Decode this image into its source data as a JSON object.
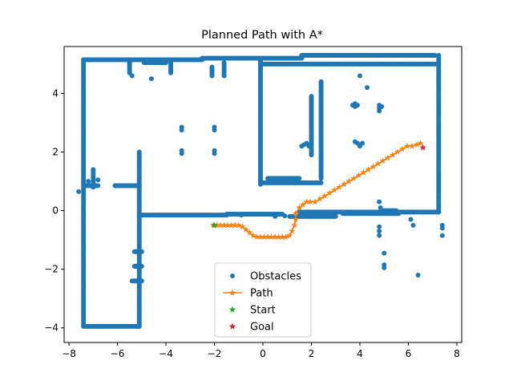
{
  "chart_data": {
    "type": "scatter",
    "title": "Planned Path with A*",
    "xlabel": "",
    "ylabel": "",
    "xlim": [
      -8.2,
      8.2
    ],
    "ylim": [
      -4.5,
      5.6
    ],
    "xticks": [
      -8,
      -6,
      -4,
      -2,
      0,
      2,
      4,
      6,
      8
    ],
    "yticks": [
      -4,
      -2,
      0,
      2,
      4
    ],
    "grid": false,
    "legend_position": "lower-center",
    "colors": {
      "obstacles": "#1f77b4",
      "path": "#ff7f0e",
      "start": "#2ca02c",
      "goal": "#d62728"
    },
    "obstacle_segments": [
      [
        [
          -7.4,
          5.15
        ],
        [
          -7.4,
          -3.95
        ]
      ],
      [
        [
          -7.4,
          -3.95
        ],
        [
          -5.1,
          -3.95
        ]
      ],
      [
        [
          -7.4,
          5.15
        ],
        [
          -2.5,
          5.15
        ]
      ],
      [
        [
          -2.5,
          5.2
        ],
        [
          1.6,
          5.2
        ]
      ],
      [
        [
          1.6,
          5.3
        ],
        [
          7.1,
          5.3
        ]
      ],
      [
        [
          -5.1,
          2.0
        ],
        [
          -5.1,
          -3.95
        ]
      ],
      [
        [
          -5.5,
          0.85
        ],
        [
          -5.1,
          0.85
        ]
      ],
      [
        [
          -6.1,
          0.85
        ],
        [
          -5.5,
          0.85
        ]
      ],
      [
        [
          -7.4,
          0.85
        ],
        [
          -6.8,
          0.85
        ]
      ],
      [
        [
          -5.0,
          -0.15
        ],
        [
          -1.5,
          -0.15
        ]
      ],
      [
        [
          -1.5,
          -0.12
        ],
        [
          0.8,
          -0.12
        ]
      ],
      [
        [
          -0.1,
          5.15
        ],
        [
          -0.1,
          0.9
        ]
      ],
      [
        [
          -0.1,
          5.0
        ],
        [
          7.1,
          5.0
        ]
      ],
      [
        [
          -0.1,
          0.95
        ],
        [
          2.4,
          0.95
        ]
      ],
      [
        [
          0.2,
          1.1
        ],
        [
          1.5,
          1.1
        ]
      ],
      [
        [
          2.4,
          4.4
        ],
        [
          2.4,
          1.1
        ]
      ],
      [
        [
          2.0,
          3.9
        ],
        [
          2.0,
          1.9
        ]
      ],
      [
        [
          7.25,
          5.3
        ],
        [
          7.25,
          -0.05
        ]
      ],
      [
        [
          1.5,
          -0.05
        ],
        [
          7.25,
          -0.05
        ]
      ],
      [
        [
          3.3,
          -0.1
        ],
        [
          5.6,
          -0.1
        ]
      ],
      [
        [
          1.1,
          -0.2
        ],
        [
          3.0,
          -0.2
        ]
      ],
      [
        [
          -1.6,
          5.05
        ],
        [
          -1.6,
          4.6
        ]
      ],
      [
        [
          -2.1,
          4.9
        ],
        [
          -2.1,
          4.6
        ]
      ],
      [
        [
          -5.5,
          5.1
        ],
        [
          -5.5,
          4.7
        ]
      ],
      [
        [
          -3.8,
          5.1
        ],
        [
          -3.8,
          4.7
        ]
      ],
      [
        [
          -5.3,
          -1.4
        ],
        [
          -5.0,
          -1.4
        ]
      ],
      [
        [
          -5.4,
          -2.4
        ],
        [
          -5.0,
          -2.4
        ]
      ],
      [
        [
          -5.3,
          -1.9
        ],
        [
          -5.0,
          -1.9
        ]
      ],
      [
        [
          -7.0,
          1.4
        ],
        [
          -7.0,
          0.8
        ]
      ],
      [
        [
          -4.9,
          5.05
        ],
        [
          -4.0,
          5.05
        ]
      ],
      [
        [
          4.9,
          0.0
        ],
        [
          5.5,
          0.0
        ]
      ]
    ],
    "obstacle_points": [
      [
        -3.35,
        2.85
      ],
      [
        -3.35,
        2.75
      ],
      [
        -3.35,
        2.05
      ],
      [
        -3.35,
        1.95
      ],
      [
        -2.0,
        2.85
      ],
      [
        -2.0,
        2.75
      ],
      [
        -2.0,
        2.05
      ],
      [
        -2.0,
        1.95
      ],
      [
        3.8,
        3.65
      ],
      [
        3.8,
        3.55
      ],
      [
        3.9,
        3.6
      ],
      [
        3.7,
        3.6
      ],
      [
        4.8,
        3.6
      ],
      [
        4.8,
        3.5
      ],
      [
        4.8,
        3.4
      ],
      [
        4.9,
        3.55
      ],
      [
        3.8,
        2.35
      ],
      [
        3.9,
        2.3
      ],
      [
        4.0,
        2.2
      ],
      [
        4.1,
        2.3
      ],
      [
        1.6,
        2.2
      ],
      [
        1.7,
        2.25
      ],
      [
        1.8,
        2.3
      ],
      [
        1.9,
        2.2
      ],
      [
        2.0,
        2.25
      ],
      [
        4.0,
        4.6
      ],
      [
        4.3,
        4.2
      ],
      [
        4.8,
        -0.55
      ],
      [
        4.8,
        -0.7
      ],
      [
        4.8,
        -0.85
      ],
      [
        5.0,
        -1.45
      ],
      [
        5.0,
        -1.85
      ],
      [
        5.0,
        -1.95
      ],
      [
        6.4,
        -2.2
      ],
      [
        6.1,
        -0.3
      ],
      [
        6.2,
        -0.5
      ],
      [
        7.4,
        -0.5
      ],
      [
        7.4,
        -0.6
      ],
      [
        7.4,
        -0.85
      ],
      [
        4.8,
        0.3
      ],
      [
        4.85,
        0.1
      ],
      [
        -7.6,
        0.65
      ],
      [
        -7.2,
        1.0
      ],
      [
        -6.8,
        1.05
      ],
      [
        -5.4,
        4.6
      ],
      [
        -4.6,
        4.5
      ],
      [
        -0.9,
        -0.15
      ],
      [
        0.9,
        -0.18
      ],
      [
        0.5,
        -0.2
      ]
    ],
    "path": {
      "x": [
        -2.05,
        -1.9,
        -1.75,
        -1.6,
        -1.45,
        -1.3,
        -1.15,
        -1.0,
        -0.85,
        -0.7,
        -0.55,
        -0.4,
        -0.25,
        -0.1,
        0.05,
        0.2,
        0.35,
        0.5,
        0.65,
        0.8,
        0.95,
        1.1,
        1.2,
        1.3,
        1.35,
        1.35,
        1.5,
        1.65,
        1.8,
        1.95,
        2.15,
        2.35,
        2.55,
        2.75,
        2.95,
        3.15,
        3.35,
        3.55,
        3.75,
        3.95,
        4.15,
        4.35,
        4.55,
        4.75,
        4.95,
        5.15,
        5.35,
        5.55,
        5.75,
        5.95,
        6.15,
        6.35,
        6.5
      ],
      "y": [
        -0.5,
        -0.5,
        -0.5,
        -0.5,
        -0.5,
        -0.5,
        -0.5,
        -0.5,
        -0.55,
        -0.65,
        -0.75,
        -0.85,
        -0.9,
        -0.9,
        -0.9,
        -0.9,
        -0.9,
        -0.9,
        -0.9,
        -0.9,
        -0.9,
        -0.85,
        -0.7,
        -0.5,
        -0.3,
        -0.1,
        0.1,
        0.2,
        0.3,
        0.3,
        0.3,
        0.4,
        0.5,
        0.6,
        0.7,
        0.8,
        0.9,
        1.0,
        1.1,
        1.2,
        1.3,
        1.4,
        1.5,
        1.6,
        1.7,
        1.8,
        1.9,
        2.0,
        2.1,
        2.2,
        2.2,
        2.25,
        2.3
      ]
    },
    "start": [
      -2.0,
      -0.5
    ],
    "goal": [
      6.6,
      2.15
    ],
    "legend": [
      {
        "key": "obstacles",
        "label": "Obstacles",
        "marker": "dot"
      },
      {
        "key": "path",
        "label": "Path",
        "marker": "line-star"
      },
      {
        "key": "start",
        "label": "Start",
        "marker": "star"
      },
      {
        "key": "goal",
        "label": "Goal",
        "marker": "star"
      }
    ]
  }
}
